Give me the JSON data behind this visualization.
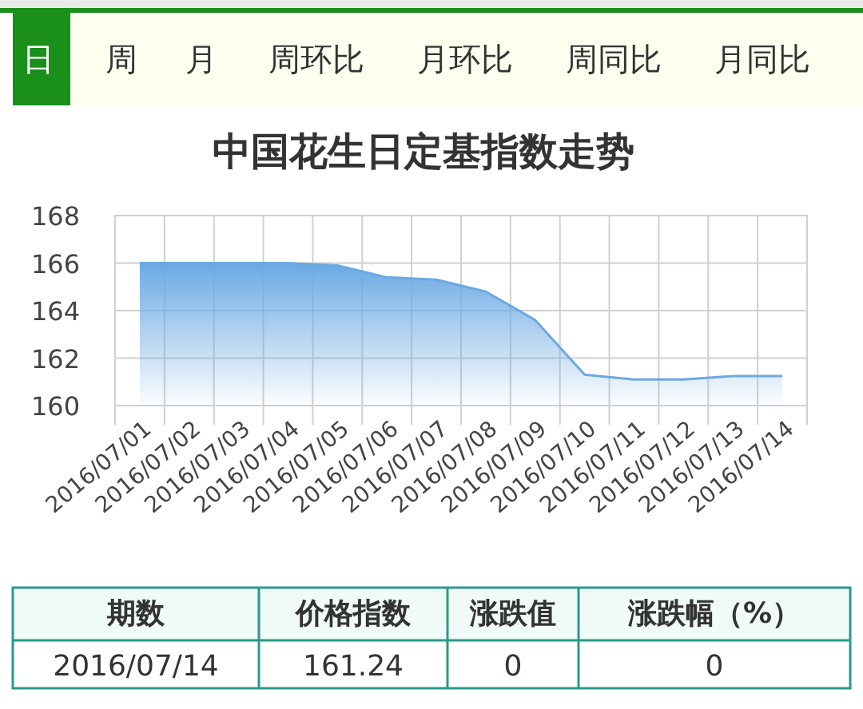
{
  "chart_data": [
    {
      "type": "other",
      "annotations": [
        "日",
        "周",
        "月",
        "周环比",
        "月环比",
        "周同比",
        "月同比"
      ]
    },
    {
      "type": "area",
      "title": "中国花生日定基指数走势",
      "categories": [
        "2016/07/01",
        "2016/07/02",
        "2016/07/03",
        "2016/07/04",
        "2016/07/05",
        "2016/07/06",
        "2016/07/07",
        "2016/07/08",
        "2016/07/09",
        "2016/07/10",
        "2016/07/11",
        "2016/07/12",
        "2016/07/13",
        "2016/07/14"
      ],
      "series": [
        {
          "color": "#6aa9e3",
          "values": [
            166,
            166,
            166,
            166,
            165.9,
            165.4,
            165.3,
            164.8,
            163.6,
            161.3,
            161.1,
            161.1,
            161.24,
            161.24
          ]
        }
      ],
      "ylim": [
        160,
        168
      ],
      "yticks": [
        160,
        162,
        164,
        166,
        168
      ],
      "grid": true
    },
    {
      "type": "other",
      "annotations": [
        "期数",
        "价格指数",
        "涨跌值",
        "涨跌幅（%）",
        "2016/07/14",
        "161.24",
        "0",
        "0"
      ]
    }
  ]
}
